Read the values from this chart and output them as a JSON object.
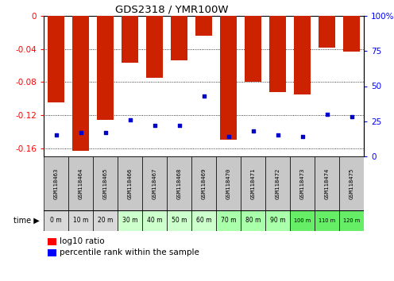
{
  "title": "GDS2318 / YMR100W",
  "samples": [
    "GSM118463",
    "GSM118464",
    "GSM118465",
    "GSM118466",
    "GSM118467",
    "GSM118468",
    "GSM118469",
    "GSM118470",
    "GSM118471",
    "GSM118472",
    "GSM118473",
    "GSM118474",
    "GSM118475"
  ],
  "time_labels": [
    "0 m",
    "10 m",
    "20 m",
    "30 m",
    "40 m",
    "50 m",
    "60 m",
    "70 m",
    "80 m",
    "90 m",
    "100 m",
    "110 m",
    "120 m"
  ],
  "log10_ratio": [
    -0.105,
    -0.163,
    -0.126,
    -0.057,
    -0.075,
    -0.054,
    -0.024,
    -0.15,
    -0.08,
    -0.092,
    -0.095,
    -0.038,
    -0.043
  ],
  "percentile_rank": [
    15,
    17,
    17,
    26,
    22,
    22,
    43,
    14,
    18,
    15,
    14,
    30,
    28
  ],
  "bar_color": "#cc2200",
  "dot_color": "#0000cc",
  "ylim_left": [
    -0.17,
    0.0
  ],
  "ylim_right": [
    0,
    100
  ],
  "yticks_left": [
    0,
    -0.04,
    -0.08,
    -0.12,
    -0.16
  ],
  "yticks_right": [
    0,
    25,
    50,
    75,
    100
  ],
  "time_row_colors": [
    "#d8d8d8",
    "#d8d8d8",
    "#d8d8d8",
    "#ccffcc",
    "#ccffcc",
    "#ccffcc",
    "#ccffcc",
    "#aaffaa",
    "#aaffaa",
    "#aaffaa",
    "#66ee66",
    "#66ee66",
    "#66ee66"
  ]
}
